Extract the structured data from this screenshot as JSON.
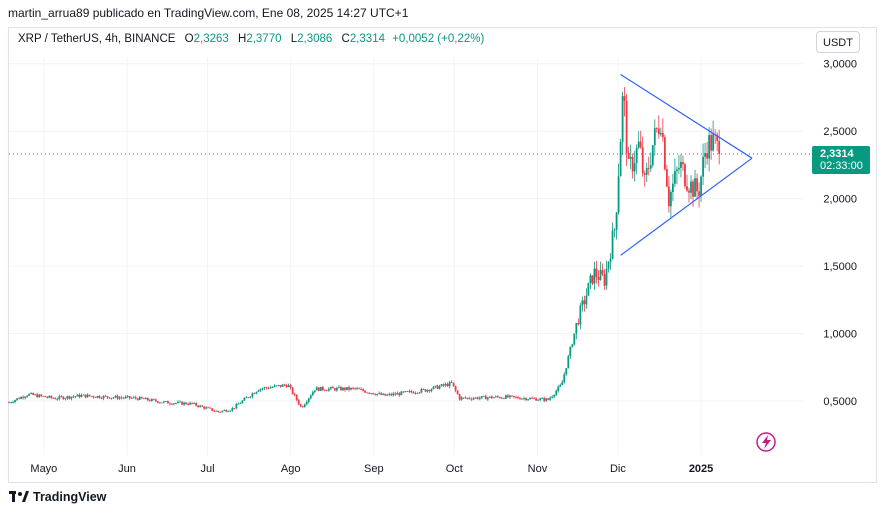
{
  "header": {
    "published_line": "martin_arrua89 publicado en TradingView.com, Ene 08, 2025 14:27 UTC+1"
  },
  "legend": {
    "symbol": "XRP / TetherUS, 4h, BINANCE",
    "open_label": "O",
    "open": "2,3263",
    "high_label": "H",
    "high": "2,3770",
    "low_label": "L",
    "low": "2,3086",
    "close_label": "C",
    "close": "2,3314",
    "change": "+0,0052 (+0,22%)"
  },
  "toolbar": {
    "currency_label": "USDT"
  },
  "price_badge": {
    "price": "2,3314",
    "countdown": "02:33:00"
  },
  "footer": {
    "brand": "TradingView",
    "logo_icon": "tradingview-logo-icon"
  },
  "colors": {
    "up": "#089981",
    "down": "#f23645",
    "trendline": "#2962ff",
    "grid": "#f0f3fa",
    "badge": "#089981"
  },
  "chart_data": {
    "type": "candlestick",
    "interval": "4h",
    "y_axis": {
      "ticks": [
        0.5,
        1.0,
        1.5,
        2.0,
        2.5,
        3.0
      ],
      "tick_labels": [
        "0,5000",
        "1,0000",
        "1,5000",
        "2,0000",
        "2,5000",
        "3,0000"
      ],
      "range": [
        0.1,
        3.05
      ]
    },
    "x_axis": {
      "tick_labels": [
        "Mayo",
        "Jun",
        "Jul",
        "Ago",
        "Sep",
        "Oct",
        "Nov",
        "Dic",
        "2025"
      ],
      "tick_dates": [
        "2024-05-01",
        "2024-06-01",
        "2024-07-01",
        "2024-08-01",
        "2024-09-01",
        "2024-10-01",
        "2024-11-01",
        "2024-12-01",
        "2025-01-01"
      ],
      "range": [
        "2024-04-18",
        "2025-02-08"
      ]
    },
    "last_price": 2.3314,
    "anchors": [
      {
        "date": "2024-04-18",
        "price": 0.49
      },
      {
        "date": "2024-04-25",
        "price": 0.55
      },
      {
        "date": "2024-05-05",
        "price": 0.52
      },
      {
        "date": "2024-05-15",
        "price": 0.54
      },
      {
        "date": "2024-05-25",
        "price": 0.53
      },
      {
        "date": "2024-06-05",
        "price": 0.52
      },
      {
        "date": "2024-06-15",
        "price": 0.49
      },
      {
        "date": "2024-06-25",
        "price": 0.48
      },
      {
        "date": "2024-07-05",
        "price": 0.42
      },
      {
        "date": "2024-07-10",
        "price": 0.44
      },
      {
        "date": "2024-07-20",
        "price": 0.59
      },
      {
        "date": "2024-07-31",
        "price": 0.62
      },
      {
        "date": "2024-08-05",
        "price": 0.45
      },
      {
        "date": "2024-08-10",
        "price": 0.59
      },
      {
        "date": "2024-08-25",
        "price": 0.59
      },
      {
        "date": "2024-09-05",
        "price": 0.54
      },
      {
        "date": "2024-09-20",
        "price": 0.58
      },
      {
        "date": "2024-09-30",
        "price": 0.63
      },
      {
        "date": "2024-10-03",
        "price": 0.52
      },
      {
        "date": "2024-10-20",
        "price": 0.53
      },
      {
        "date": "2024-11-05",
        "price": 0.51
      },
      {
        "date": "2024-11-10",
        "price": 0.62
      },
      {
        "date": "2024-11-16",
        "price": 1.1
      },
      {
        "date": "2024-11-22",
        "price": 1.45
      },
      {
        "date": "2024-11-26",
        "price": 1.4
      },
      {
        "date": "2024-11-30",
        "price": 1.8
      },
      {
        "date": "2024-12-03",
        "price": 2.8
      },
      {
        "date": "2024-12-05",
        "price": 2.2
      },
      {
        "date": "2024-12-09",
        "price": 2.4
      },
      {
        "date": "2024-12-11",
        "price": 2.1
      },
      {
        "date": "2024-12-14",
        "price": 2.4
      },
      {
        "date": "2024-12-17",
        "price": 2.6
      },
      {
        "date": "2024-12-20",
        "price": 2.0
      },
      {
        "date": "2024-12-24",
        "price": 2.25
      },
      {
        "date": "2024-12-28",
        "price": 2.1
      },
      {
        "date": "2024-12-31",
        "price": 2.05
      },
      {
        "date": "2025-01-03",
        "price": 2.4
      },
      {
        "date": "2025-01-06",
        "price": 2.42
      },
      {
        "date": "2025-01-08",
        "price": 2.33
      }
    ],
    "drawings": {
      "triangle_upper": [
        {
          "date": "2024-12-02",
          "price": 2.92
        },
        {
          "date": "2025-01-20",
          "price": 2.3
        }
      ],
      "triangle_lower": [
        {
          "date": "2024-12-02",
          "price": 1.58
        },
        {
          "date": "2025-01-20",
          "price": 2.3
        }
      ]
    },
    "grid": true,
    "legend_position": "top-left"
  }
}
